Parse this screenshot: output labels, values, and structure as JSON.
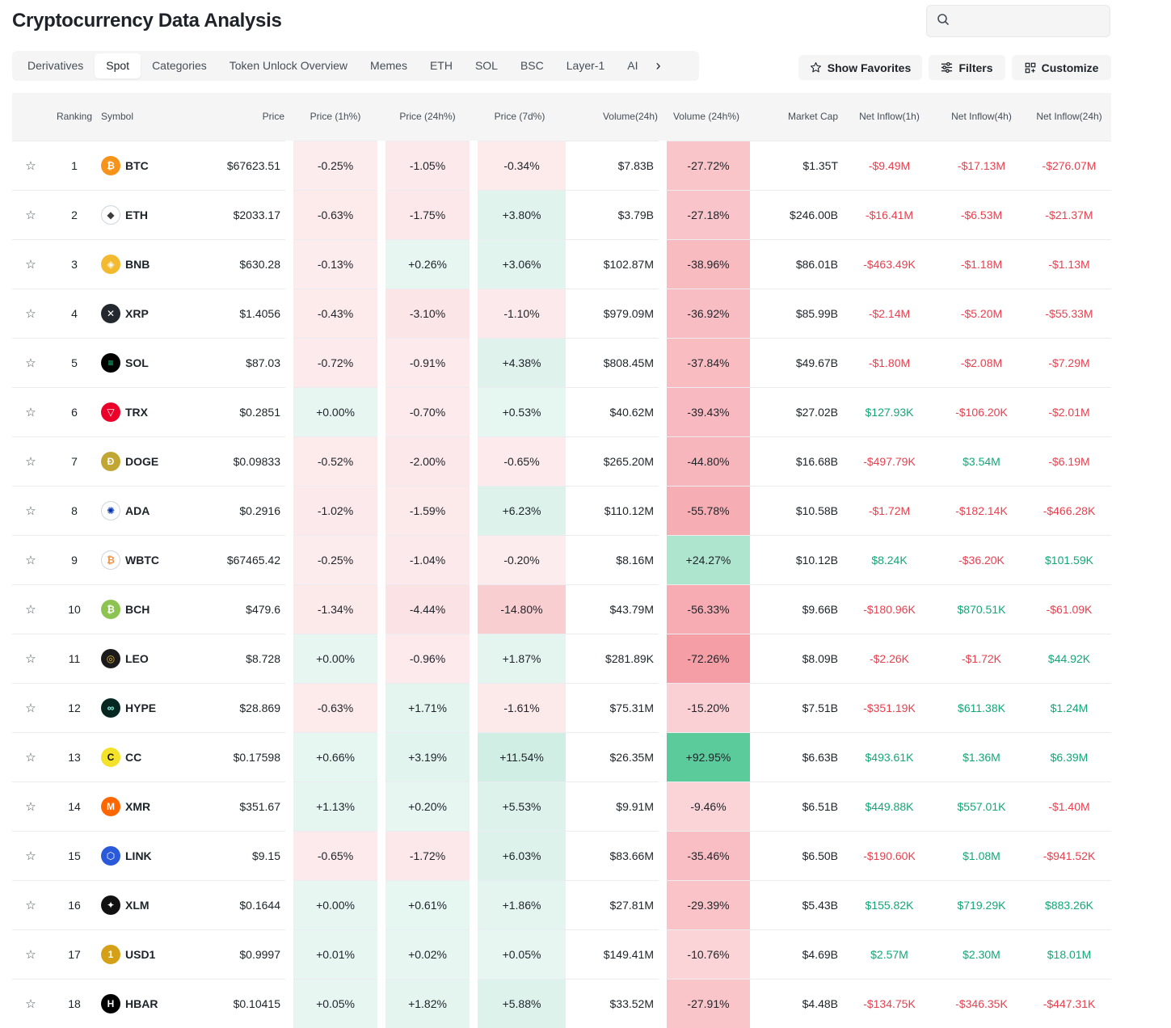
{
  "page": {
    "title": "Cryptocurrency Data Analysis"
  },
  "search": {
    "placeholder": "",
    "icon": "search-icon"
  },
  "tabs": [
    "Derivatives",
    "Spot",
    "Categories",
    "Token Unlock Overview",
    "Memes",
    "ETH",
    "SOL",
    "BSC",
    "Layer-1",
    "AI"
  ],
  "active_tab": "Spot",
  "buttons": {
    "favorites": "Show Favorites",
    "filters": "Filters",
    "customize": "Customize"
  },
  "columns": [
    "",
    "Ranking",
    "Symbol",
    "Price",
    "Price (1h%)",
    "Price (24h%)",
    "Price (7d%)",
    "Volume(24h)",
    "Volume (24h%)",
    "Market Cap",
    "Net Inflow(1h)",
    "Net Inflow(4h)",
    "Net Inflow(24h)"
  ],
  "colors": {
    "positive": "#12a874",
    "negative": "#e8404f",
    "header_bg": "#f5f5f5"
  },
  "rows": [
    {
      "rank": "1",
      "symbol": "BTC",
      "price": "$67623.51",
      "p1h": "-0.25%",
      "p24h": "-1.05%",
      "p7d": "-0.34%",
      "vol": "$7.83B",
      "vol24": "-27.72%",
      "mcap": "$1.35T",
      "f1h": "-$9.49M",
      "f4h": "-$17.13M",
      "f24h": "-$276.07M"
    },
    {
      "rank": "2",
      "symbol": "ETH",
      "price": "$2033.17",
      "p1h": "-0.63%",
      "p24h": "-1.75%",
      "p7d": "+3.80%",
      "vol": "$3.79B",
      "vol24": "-27.18%",
      "mcap": "$246.00B",
      "f1h": "-$16.41M",
      "f4h": "-$6.53M",
      "f24h": "-$21.37M"
    },
    {
      "rank": "3",
      "symbol": "BNB",
      "price": "$630.28",
      "p1h": "-0.13%",
      "p24h": "+0.26%",
      "p7d": "+3.06%",
      "vol": "$102.87M",
      "vol24": "-38.96%",
      "mcap": "$86.01B",
      "f1h": "-$463.49K",
      "f4h": "-$1.18M",
      "f24h": "-$1.13M"
    },
    {
      "rank": "4",
      "symbol": "XRP",
      "price": "$1.4056",
      "p1h": "-0.43%",
      "p24h": "-3.10%",
      "p7d": "-1.10%",
      "vol": "$979.09M",
      "vol24": "-36.92%",
      "mcap": "$85.99B",
      "f1h": "-$2.14M",
      "f4h": "-$5.20M",
      "f24h": "-$55.33M"
    },
    {
      "rank": "5",
      "symbol": "SOL",
      "price": "$87.03",
      "p1h": "-0.72%",
      "p24h": "-0.91%",
      "p7d": "+4.38%",
      "vol": "$808.45M",
      "vol24": "-37.84%",
      "mcap": "$49.67B",
      "f1h": "-$1.80M",
      "f4h": "-$2.08M",
      "f24h": "-$7.29M"
    },
    {
      "rank": "6",
      "symbol": "TRX",
      "price": "$0.2851",
      "p1h": "+0.00%",
      "p24h": "-0.70%",
      "p7d": "+0.53%",
      "vol": "$40.62M",
      "vol24": "-39.43%",
      "mcap": "$27.02B",
      "f1h": "$127.93K",
      "f4h": "-$106.20K",
      "f24h": "-$2.01M"
    },
    {
      "rank": "7",
      "symbol": "DOGE",
      "price": "$0.09833",
      "p1h": "-0.52%",
      "p24h": "-2.00%",
      "p7d": "-0.65%",
      "vol": "$265.20M",
      "vol24": "-44.80%",
      "mcap": "$16.68B",
      "f1h": "-$497.79K",
      "f4h": "$3.54M",
      "f24h": "-$6.19M"
    },
    {
      "rank": "8",
      "symbol": "ADA",
      "price": "$0.2916",
      "p1h": "-1.02%",
      "p24h": "-1.59%",
      "p7d": "+6.23%",
      "vol": "$110.12M",
      "vol24": "-55.78%",
      "mcap": "$10.58B",
      "f1h": "-$1.72M",
      "f4h": "-$182.14K",
      "f24h": "-$466.28K"
    },
    {
      "rank": "9",
      "symbol": "WBTC",
      "price": "$67465.42",
      "p1h": "-0.25%",
      "p24h": "-1.04%",
      "p7d": "-0.20%",
      "vol": "$8.16M",
      "vol24": "+24.27%",
      "mcap": "$10.12B",
      "f1h": "$8.24K",
      "f4h": "-$36.20K",
      "f24h": "$101.59K"
    },
    {
      "rank": "10",
      "symbol": "BCH",
      "price": "$479.6",
      "p1h": "-1.34%",
      "p24h": "-4.44%",
      "p7d": "-14.80%",
      "vol": "$43.79M",
      "vol24": "-56.33%",
      "mcap": "$9.66B",
      "f1h": "-$180.96K",
      "f4h": "$870.51K",
      "f24h": "-$61.09K"
    },
    {
      "rank": "11",
      "symbol": "LEO",
      "price": "$8.728",
      "p1h": "+0.00%",
      "p24h": "-0.96%",
      "p7d": "+1.87%",
      "vol": "$281.89K",
      "vol24": "-72.26%",
      "mcap": "$8.09B",
      "f1h": "-$2.26K",
      "f4h": "-$1.72K",
      "f24h": "$44.92K"
    },
    {
      "rank": "12",
      "symbol": "HYPE",
      "price": "$28.869",
      "p1h": "-0.63%",
      "p24h": "+1.71%",
      "p7d": "-1.61%",
      "vol": "$75.31M",
      "vol24": "-15.20%",
      "mcap": "$7.51B",
      "f1h": "-$351.19K",
      "f4h": "$611.38K",
      "f24h": "$1.24M"
    },
    {
      "rank": "13",
      "symbol": "CC",
      "price": "$0.17598",
      "p1h": "+0.66%",
      "p24h": "+3.19%",
      "p7d": "+11.54%",
      "vol": "$26.35M",
      "vol24": "+92.95%",
      "mcap": "$6.63B",
      "f1h": "$493.61K",
      "f4h": "$1.36M",
      "f24h": "$6.39M"
    },
    {
      "rank": "14",
      "symbol": "XMR",
      "price": "$351.67",
      "p1h": "+1.13%",
      "p24h": "+0.20%",
      "p7d": "+5.53%",
      "vol": "$9.91M",
      "vol24": "-9.46%",
      "mcap": "$6.51B",
      "f1h": "$449.88K",
      "f4h": "$557.01K",
      "f24h": "-$1.40M"
    },
    {
      "rank": "15",
      "symbol": "LINK",
      "price": "$9.15",
      "p1h": "-0.65%",
      "p24h": "-1.72%",
      "p7d": "+6.03%",
      "vol": "$83.66M",
      "vol24": "-35.46%",
      "mcap": "$6.50B",
      "f1h": "-$190.60K",
      "f4h": "$1.08M",
      "f24h": "-$941.52K"
    },
    {
      "rank": "16",
      "symbol": "XLM",
      "price": "$0.1644",
      "p1h": "+0.00%",
      "p24h": "+0.61%",
      "p7d": "+1.86%",
      "vol": "$27.81M",
      "vol24": "-29.39%",
      "mcap": "$5.43B",
      "f1h": "$155.82K",
      "f4h": "$719.29K",
      "f24h": "$883.26K"
    },
    {
      "rank": "17",
      "symbol": "USD1",
      "price": "$0.9997",
      "p1h": "+0.01%",
      "p24h": "+0.02%",
      "p7d": "+0.05%",
      "vol": "$149.41M",
      "vol24": "-10.76%",
      "mcap": "$4.69B",
      "f1h": "$2.57M",
      "f4h": "$2.30M",
      "f24h": "$18.01M"
    },
    {
      "rank": "18",
      "symbol": "HBAR",
      "price": "$0.10415",
      "p1h": "+0.05%",
      "p24h": "+1.82%",
      "p7d": "+5.88%",
      "vol": "$33.52M",
      "vol24": "-27.91%",
      "mcap": "$4.48B",
      "f1h": "-$134.75K",
      "f4h": "-$346.35K",
      "f24h": "-$447.31K"
    }
  ],
  "coin_icons": {
    "BTC": {
      "bg": "#f7931a",
      "fg": "#ffffff",
      "glyph": "₿",
      "icon": "bitcoin-icon"
    },
    "ETH": {
      "bg": "#ffffff",
      "fg": "#3c3c3d",
      "glyph": "◆",
      "icon": "ethereum-icon"
    },
    "BNB": {
      "bg": "#f3ba2f",
      "fg": "#ffffff",
      "glyph": "◈",
      "icon": "bnb-icon"
    },
    "XRP": {
      "bg": "#23292f",
      "fg": "#ffffff",
      "glyph": "✕",
      "icon": "xrp-icon"
    },
    "SOL": {
      "bg": "#000000",
      "fg": "#14f195",
      "glyph": "≡",
      "icon": "solana-icon"
    },
    "TRX": {
      "bg": "#eb0029",
      "fg": "#ffffff",
      "glyph": "▽",
      "icon": "tron-icon"
    },
    "DOGE": {
      "bg": "#c2a633",
      "fg": "#ffffff",
      "glyph": "Ð",
      "icon": "dogecoin-icon"
    },
    "ADA": {
      "bg": "#ffffff",
      "fg": "#0033ad",
      "glyph": "✺",
      "icon": "cardano-icon"
    },
    "WBTC": {
      "bg": "#ffffff",
      "fg": "#f09242",
      "glyph": "₿",
      "icon": "wrapped-bitcoin-icon"
    },
    "BCH": {
      "bg": "#8dc351",
      "fg": "#ffffff",
      "glyph": "₿",
      "icon": "bitcoin-cash-icon"
    },
    "LEO": {
      "bg": "#1b1b1b",
      "fg": "#e8b840",
      "glyph": "◎",
      "icon": "leo-icon"
    },
    "HYPE": {
      "bg": "#072723",
      "fg": "#97fce4",
      "glyph": "∞",
      "icon": "hyperliquid-icon"
    },
    "CC": {
      "bg": "#f4e12a",
      "fg": "#111111",
      "glyph": "C",
      "icon": "canton-coin-icon"
    },
    "XMR": {
      "bg": "#ff6600",
      "fg": "#ffffff",
      "glyph": "M",
      "icon": "monero-icon"
    },
    "LINK": {
      "bg": "#2a5ada",
      "fg": "#ffffff",
      "glyph": "⬡",
      "icon": "chainlink-icon"
    },
    "XLM": {
      "bg": "#111111",
      "fg": "#ffffff",
      "glyph": "✦",
      "icon": "stellar-icon"
    },
    "USD1": {
      "bg": "#d4a017",
      "fg": "#ffffff",
      "glyph": "1",
      "icon": "usd1-icon"
    },
    "HBAR": {
      "bg": "#000000",
      "fg": "#ffffff",
      "glyph": "H",
      "icon": "hedera-icon"
    }
  }
}
